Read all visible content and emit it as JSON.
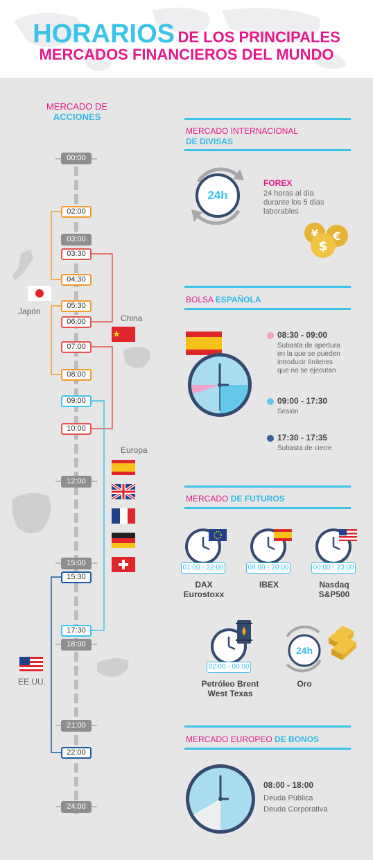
{
  "header": {
    "title_big": "HORARIOS",
    "title_rest": "DE LOS PRINCIPALES",
    "title_line2": "MERCADOS FINANCIEROS DEL MUNDO"
  },
  "acciones": {
    "label_top": "MERCADO DE",
    "label_bottom": "ACCIONES",
    "times": {
      "t0000": "00:00",
      "t0200": "02:00",
      "t0300": "03:00",
      "t0330": "03:30",
      "t0430": "04:30",
      "t0530": "05:30",
      "t0600": "06:00",
      "t0700": "07:00",
      "t0800": "08:00",
      "t0900": "09:00",
      "t1000": "10:00",
      "t1200": "12:00",
      "t1500": "15:00",
      "t1530": "15:30",
      "t1730": "17:30",
      "t1800": "18:00",
      "t2100": "21:00",
      "t2200": "22:00",
      "t2400": "24:00"
    },
    "regions": {
      "japon": "Japón",
      "china": "China",
      "europa": "Europa",
      "eeuu": "EE.UU."
    }
  },
  "divisas": {
    "title_a": "MERCADO INTERNACIONAL",
    "title_b": "DE DIVISAS",
    "clock": "24h",
    "name": "FOREX",
    "desc1": "24 horas al día",
    "desc2": "durante los 5 días",
    "desc3": "laborables"
  },
  "bolsa": {
    "title_a": "BOLSA",
    "title_b": "ESPAÑOLA",
    "items": [
      {
        "range": "08:30 - 09:00",
        "desc": [
          "Subasta de apertura",
          "en la que se pueden",
          "introducir órdenes",
          "que no se ejecutan"
        ],
        "color": "#f2a1c6"
      },
      {
        "range": "09:00 - 17:30",
        "desc": [
          "Sesión"
        ],
        "color": "#65c7ea"
      },
      {
        "range": "17:30 - 17:35",
        "desc": [
          "Subasta de cierre"
        ],
        "color": "#3b5f9c"
      }
    ]
  },
  "futuros": {
    "title_a": "MERCADO",
    "title_b": "DE FUTUROS",
    "dax": {
      "tag": "01:00 - 22:00",
      "l1": "DAX",
      "l2": "Eurostoxx"
    },
    "ibex": {
      "tag": "08:00 - 20:00",
      "l1": "IBEX"
    },
    "nasdaq": {
      "tag": "00:00 - 23:00",
      "l1": "Nasdaq",
      "l2": "S&P500"
    },
    "petroleo": {
      "tag": "02:00 - 00:00",
      "l1": "Petróleo Brent",
      "l2": "West Texas"
    },
    "oro": {
      "clock": "24h",
      "l1": "Oro"
    }
  },
  "bonos": {
    "title_a": "MERCADO EUROPEO",
    "title_b": "DE BONOS",
    "range": "08:00 - 18:00",
    "d1": "Deuda Pública",
    "d2": "Deuda Corporativa"
  }
}
